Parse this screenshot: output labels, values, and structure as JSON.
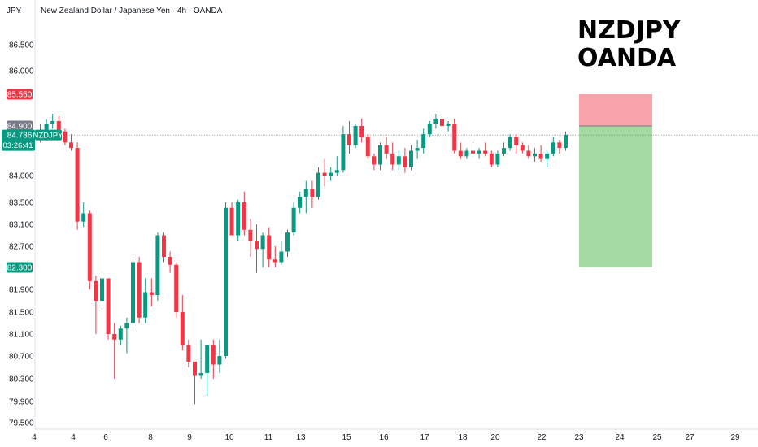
{
  "header": {
    "currency": "JPY",
    "title": "New Zealand Dollar / Japanese Yen · 4h · OANDA"
  },
  "overlay_text": {
    "line1": "NZDJPY",
    "line2": "OANDA"
  },
  "price_labels": {
    "stop": {
      "value": "85.550",
      "color": "#f23645"
    },
    "entry": {
      "value": "84.900",
      "color": "#787b86"
    },
    "current": {
      "symbol": "NZDJPY",
      "price": "84.736",
      "countdown": "03:26:41",
      "color": "#089981"
    },
    "target": {
      "value": "82.300",
      "color": "#089981"
    }
  },
  "colors": {
    "up": "#089981",
    "down": "#f23645",
    "risk_zone": "#f7a3a9",
    "reward_zone": "#a5d9a3",
    "current_line": "#089981"
  },
  "chart_data": {
    "type": "candlestick",
    "y_axis_ticks": [
      "86.500",
      "86.000",
      "84.000",
      "83.500",
      "83.100",
      "82.700",
      "81.900",
      "81.500",
      "81.100",
      "80.700",
      "80.300",
      "79.900",
      "79.500"
    ],
    "x_axis_ticks": [
      "4",
      "4",
      "6",
      "8",
      "9",
      "10",
      "11",
      "13",
      "15",
      "16",
      "17",
      "18",
      "20",
      "22",
      "23",
      "24",
      "25",
      "27",
      "29"
    ],
    "ylim": [
      79.5,
      87.0
    ],
    "position": {
      "type": "short",
      "entry": 84.9,
      "stop": 85.55,
      "target": 82.3,
      "start_date": "23",
      "end_date": "25"
    },
    "current_price": 84.736,
    "candles": [
      [
        84.8,
        84.95,
        84.6,
        84.75
      ],
      [
        84.75,
        85.05,
        84.7,
        84.95
      ],
      [
        84.95,
        85.15,
        84.85,
        85.0
      ],
      [
        85.0,
        85.1,
        84.75,
        84.8
      ],
      [
        84.8,
        84.85,
        84.55,
        84.6
      ],
      [
        84.6,
        84.75,
        84.45,
        84.5
      ],
      [
        84.5,
        84.6,
        83.0,
        83.15
      ],
      [
        83.15,
        83.5,
        83.05,
        83.3
      ],
      [
        83.3,
        83.35,
        81.9,
        82.05
      ],
      [
        82.05,
        82.15,
        81.1,
        81.7
      ],
      [
        81.7,
        82.2,
        81.6,
        82.1
      ],
      [
        82.1,
        82.1,
        81.0,
        81.1
      ],
      [
        81.1,
        81.3,
        80.3,
        81.0
      ],
      [
        81.0,
        81.25,
        80.9,
        81.2
      ],
      [
        81.2,
        81.4,
        80.75,
        81.3
      ],
      [
        81.3,
        82.5,
        81.2,
        82.4
      ],
      [
        82.4,
        82.5,
        81.3,
        81.4
      ],
      [
        81.4,
        82.1,
        81.3,
        81.85
      ],
      [
        81.85,
        82.1,
        81.6,
        81.8
      ],
      [
        81.8,
        82.95,
        81.7,
        82.9
      ],
      [
        82.9,
        82.95,
        82.4,
        82.5
      ],
      [
        82.5,
        82.6,
        82.2,
        82.35
      ],
      [
        82.35,
        82.4,
        81.4,
        81.5
      ],
      [
        81.5,
        81.8,
        80.8,
        80.9
      ],
      [
        80.9,
        81.0,
        80.5,
        80.6
      ],
      [
        80.6,
        80.6,
        79.85,
        80.35
      ],
      [
        80.35,
        81.0,
        80.3,
        80.4
      ],
      [
        80.4,
        80.9,
        80.0,
        80.9
      ],
      [
        80.9,
        81.0,
        80.3,
        80.55
      ],
      [
        80.55,
        81.0,
        80.4,
        80.7
      ],
      [
        80.7,
        83.5,
        80.65,
        83.4
      ],
      [
        83.4,
        83.5,
        82.9,
        82.9
      ],
      [
        82.9,
        83.55,
        82.8,
        83.5
      ],
      [
        83.5,
        83.7,
        82.9,
        83.0
      ],
      [
        83.0,
        83.2,
        82.5,
        82.8
      ],
      [
        82.8,
        83.1,
        82.2,
        82.65
      ],
      [
        82.65,
        82.95,
        82.3,
        82.9
      ],
      [
        82.9,
        83.05,
        82.3,
        82.45
      ],
      [
        82.45,
        82.7,
        82.3,
        82.4
      ],
      [
        82.4,
        82.8,
        82.35,
        82.6
      ],
      [
        82.6,
        83.0,
        82.5,
        82.95
      ],
      [
        82.95,
        83.5,
        82.9,
        83.4
      ],
      [
        83.4,
        83.7,
        83.3,
        83.6
      ],
      [
        83.6,
        83.9,
        83.3,
        83.75
      ],
      [
        83.75,
        83.9,
        83.4,
        83.6
      ],
      [
        83.6,
        84.15,
        83.55,
        84.05
      ],
      [
        84.05,
        84.3,
        83.8,
        84.0
      ],
      [
        84.0,
        84.15,
        83.9,
        84.05
      ],
      [
        84.05,
        84.35,
        84.0,
        84.1
      ],
      [
        84.1,
        84.9,
        84.05,
        84.75
      ],
      [
        84.75,
        85.0,
        84.4,
        84.55
      ],
      [
        84.55,
        84.95,
        84.5,
        84.9
      ],
      [
        84.9,
        85.05,
        84.6,
        84.7
      ],
      [
        84.7,
        84.75,
        84.3,
        84.35
      ],
      [
        84.35,
        84.4,
        84.1,
        84.2
      ],
      [
        84.2,
        84.6,
        84.1,
        84.55
      ],
      [
        84.55,
        84.7,
        84.3,
        84.4
      ],
      [
        84.4,
        84.6,
        84.1,
        84.2
      ],
      [
        84.2,
        84.45,
        84.1,
        84.35
      ],
      [
        84.35,
        84.5,
        84.05,
        84.15
      ],
      [
        84.15,
        84.55,
        84.1,
        84.45
      ],
      [
        84.45,
        84.65,
        84.3,
        84.5
      ],
      [
        84.5,
        84.85,
        84.4,
        84.75
      ],
      [
        84.75,
        85.0,
        84.7,
        84.95
      ],
      [
        84.95,
        85.15,
        84.85,
        85.05
      ],
      [
        85.05,
        85.1,
        84.8,
        84.9
      ],
      [
        84.9,
        85.0,
        84.8,
        84.95
      ],
      [
        84.95,
        85.05,
        84.4,
        84.45
      ],
      [
        84.45,
        84.6,
        84.3,
        84.35
      ],
      [
        84.35,
        84.5,
        84.3,
        84.45
      ],
      [
        84.45,
        84.6,
        84.35,
        84.4
      ],
      [
        84.4,
        84.5,
        84.3,
        84.45
      ],
      [
        84.45,
        84.6,
        84.35,
        84.4
      ],
      [
        84.4,
        84.45,
        84.15,
        84.2
      ],
      [
        84.2,
        84.45,
        84.15,
        84.4
      ],
      [
        84.4,
        84.6,
        84.35,
        84.5
      ],
      [
        84.5,
        84.75,
        84.45,
        84.7
      ],
      [
        84.7,
        84.75,
        84.4,
        84.55
      ],
      [
        84.55,
        84.6,
        84.4,
        84.45
      ],
      [
        84.45,
        84.55,
        84.3,
        84.35
      ],
      [
        84.35,
        84.5,
        84.25,
        84.4
      ],
      [
        84.4,
        84.55,
        84.25,
        84.3
      ],
      [
        84.3,
        84.45,
        84.15,
        84.4
      ],
      [
        84.4,
        84.7,
        84.35,
        84.6
      ],
      [
        84.6,
        84.65,
        84.4,
        84.5
      ],
      [
        84.5,
        84.8,
        84.45,
        84.74
      ]
    ]
  }
}
